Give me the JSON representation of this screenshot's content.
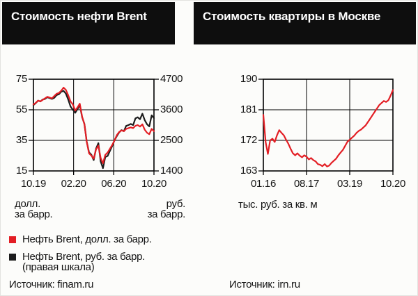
{
  "chart_data": [
    {
      "type": "line",
      "title": "Стоимость нефти Brent",
      "x_ticks": [
        "10.19",
        "02.20",
        "06.20",
        "10.20"
      ],
      "left_axis": {
        "min": 15,
        "max": 75,
        "ticks": [
          75,
          55,
          35,
          15
        ],
        "label_lines": [
          "долл.",
          "за барр."
        ]
      },
      "right_axis": {
        "min": 1400,
        "max": 4700,
        "ticks": [
          4700,
          3600,
          2500,
          1400
        ],
        "label_lines": [
          "руб.",
          "за барр."
        ]
      },
      "grid": true,
      "series": [
        {
          "name": "Нефть Brent, долл. за барр.",
          "axis": "left",
          "color": "#e31e24",
          "values": [
            58.5,
            59.5,
            61.0,
            60.5,
            61.5,
            62.5,
            63.5,
            63.0,
            62.5,
            64.0,
            65.5,
            66.0,
            67.5,
            69.5,
            68.0,
            64.5,
            60.5,
            58.5,
            54.5,
            56.5,
            59.0,
            50.5,
            45.5,
            34.0,
            26.5,
            25.0,
            23.0,
            29.0,
            31.5,
            23.5,
            20.0,
            25.5,
            27.0,
            29.5,
            32.0,
            35.0,
            38.5,
            40.5,
            41.5,
            41.0,
            42.5,
            43.0,
            43.5,
            43.0,
            44.5,
            45.0,
            44.0,
            45.5,
            42.0,
            40.0,
            39.0,
            42.5,
            41.0
          ]
        },
        {
          "name": "Нефть Brent, руб. за барр. (правая шкала)",
          "axis": "right",
          "color": "#1c1c1c",
          "values": [
            3770,
            3840,
            3930,
            3900,
            3970,
            3990,
            4050,
            4020,
            3990,
            4030,
            4130,
            4160,
            4250,
            4280,
            4180,
            3970,
            3720,
            3600,
            3490,
            3620,
            3780,
            3330,
            3090,
            2450,
            2070,
            1980,
            1790,
            2200,
            2400,
            1740,
            1500,
            1900,
            1940,
            2120,
            2300,
            2500,
            2660,
            2790,
            2870,
            2830,
            3020,
            3050,
            3090,
            3050,
            3290,
            3330,
            3260,
            3460,
            3230,
            3080,
            3000,
            3400,
            3300
          ]
        }
      ],
      "legend": [
        {
          "color": "#e31e24",
          "lines": [
            "Нефть Brent, долл. за барр."
          ]
        },
        {
          "color": "#1c1c1c",
          "lines": [
            "Нефть Brent, руб. за барр.",
            "(правая шкала)"
          ]
        }
      ],
      "source": "Источник: finam.ru"
    },
    {
      "type": "line",
      "title": "Стоимость квартиры в Москве",
      "x_ticks": [
        "01.16",
        "08.17",
        "03.19",
        "10.20"
      ],
      "left_axis": {
        "min": 163,
        "max": 190,
        "ticks": [
          190,
          181,
          172,
          163
        ],
        "label_lines": [
          "тыс. руб. за кв. м"
        ]
      },
      "grid": true,
      "series": [
        {
          "name": "Стоимость квартиры в Москве, тыс. руб. за кв. м",
          "axis": "left",
          "color": "#e31e24",
          "values": [
            179.5,
            171.5,
            168.0,
            172.0,
            172.5,
            171.5,
            173.5,
            175.0,
            174.2,
            173.5,
            172.2,
            171.0,
            169.5,
            168.2,
            167.6,
            168.2,
            167.5,
            167.0,
            167.6,
            167.2,
            166.4,
            166.8,
            166.2,
            165.8,
            165.0,
            164.8,
            164.4,
            165.0,
            164.3,
            164.6,
            165.4,
            166.0,
            166.6,
            167.6,
            168.4,
            169.2,
            170.4,
            171.6,
            172.2,
            172.8,
            173.4,
            174.2,
            174.8,
            175.2,
            175.8,
            176.4,
            177.4,
            178.4,
            179.4,
            180.4,
            181.4,
            182.4,
            183.0,
            183.6,
            183.3,
            183.8,
            185.2,
            186.8
          ]
        }
      ],
      "source": "Источник: irn.ru"
    }
  ]
}
